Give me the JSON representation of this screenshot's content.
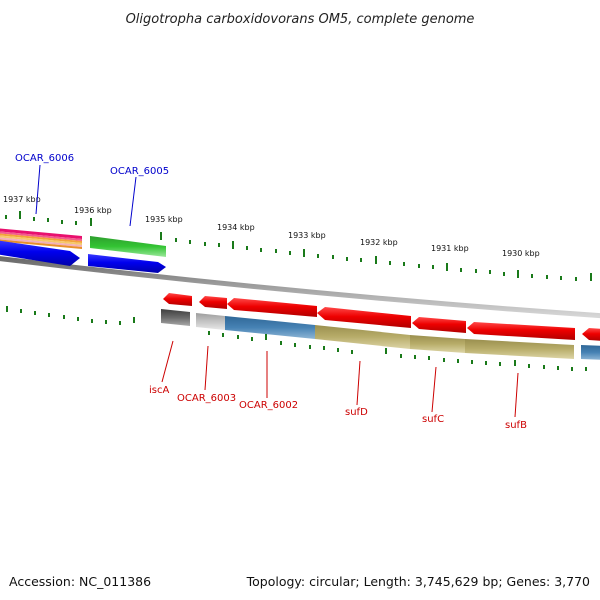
{
  "title": "Oligotropha carboxidovorans OM5, complete genome",
  "footer": {
    "accession": "Accession: NC_011386",
    "summary": "Topology: circular; Length: 3,745,629 bp; Genes: 3,770"
  },
  "kbp_ticks": [
    "1937 kbp",
    "1936 kbp",
    "1935 kbp",
    "1934 kbp",
    "1933 kbp",
    "1932 kbp",
    "1931 kbp",
    "1930 kbp"
  ],
  "gene_labels": [
    {
      "text": "OCAR_6006",
      "color": "#0000cc"
    },
    {
      "text": "OCAR_6005",
      "color": "#0000cc"
    },
    {
      "text": "iscA",
      "color": "#cc0000"
    },
    {
      "text": "OCAR_6003",
      "color": "#cc0000"
    },
    {
      "text": "OCAR_6002",
      "color": "#cc0000"
    },
    {
      "text": "sufD",
      "color": "#cc0000"
    },
    {
      "text": "sufC",
      "color": "#cc0000"
    },
    {
      "text": "sufB",
      "color": "#cc0000"
    }
  ],
  "colors": {
    "forward_cds": "#0000ee",
    "reverse_cds": "#ee0000",
    "function_green": "#33bb33",
    "function_blue": "#4682b4",
    "function_olive": "#b8ad6a",
    "function_grey": "#888888",
    "backbone": "#888888",
    "tick": "#1a7a1a"
  }
}
